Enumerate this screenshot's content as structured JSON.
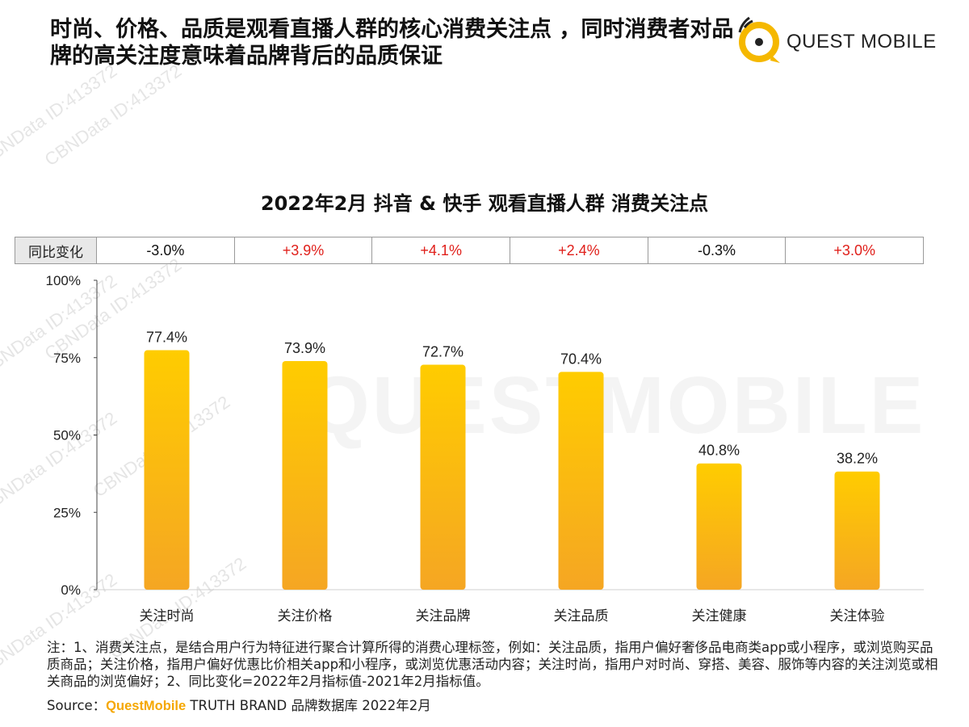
{
  "header": {
    "title": "时尚、价格、品质是观看直播人群的核心消费关注点 ，同时消费者对品牌的高关注度意味着品牌背后的品质保证",
    "brand_name": "QUEST MOBILE"
  },
  "watermark": {
    "text": "CBNData ID:413372",
    "background_brand": "QUESTMOBILE"
  },
  "yoy": {
    "label": "同比变化",
    "values": [
      "-3.0%",
      "+3.9%",
      "+4.1%",
      "+2.4%",
      "-0.3%",
      "+3.0%"
    ],
    "colors": [
      "#111111",
      "#e0201b",
      "#e0201b",
      "#e0201b",
      "#111111",
      "#e0201b"
    ]
  },
  "chart_data": {
    "type": "bar",
    "title": "2022年2月 抖音 & 快手  观看直播人群 消费关注点",
    "categories": [
      "关注时尚",
      "关注价格",
      "关注品牌",
      "关注品质",
      "关注健康",
      "关注体验"
    ],
    "values": [
      77.4,
      73.9,
      72.7,
      70.4,
      40.8,
      38.2
    ],
    "value_labels": [
      "77.4%",
      "73.9%",
      "72.7%",
      "70.4%",
      "40.8%",
      "38.2%"
    ],
    "ylim": [
      0,
      100
    ],
    "yticks": [
      0,
      25,
      50,
      75,
      100
    ],
    "ytick_labels": [
      "0%",
      "25%",
      "50%",
      "75%",
      "100%"
    ],
    "grid": false,
    "bar_color_top": "#ffcc00",
    "bar_color_bottom": "#f5a623"
  },
  "footer": {
    "notes": "注：1、消费关注点，是结合用户行为特征进行聚合计算所得的消费心理标签，例如：关注品质，指用户偏好奢侈品电商类app或小程序，或浏览购买品质商品；关注价格，指用户偏好优惠比价相关app和小程序，或浏览优惠活动内容；关注时尚，指用户对时尚、穿搭、美容、服饰等内容的关注浏览或相关商品的浏览偏好；2、同比变化=2022年2月指标值-2021年2月指标值。",
    "source_prefix": "Source：",
    "source_brand": "QuestMobile",
    "source_suffix": " TRUTH BRAND 品牌数据库 2022年2月"
  }
}
